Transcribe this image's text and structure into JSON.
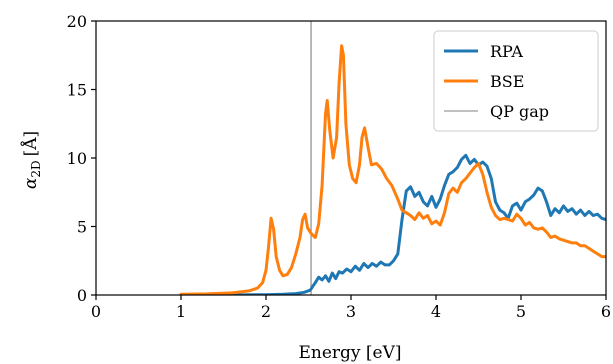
{
  "chart_data": {
    "type": "line",
    "title": "",
    "xlabel": "Energy [eV]",
    "ylabel_main": "α",
    "ylabel_sub": "2D",
    "ylabel_unit": "[Å]",
    "xlim": [
      0,
      6
    ],
    "ylim": [
      0,
      20
    ],
    "xticks": [
      0,
      1,
      2,
      3,
      4,
      5,
      6
    ],
    "yticks": [
      0,
      5,
      10,
      15,
      20
    ],
    "grid": false,
    "legend_position": "top-right",
    "qp_gap": 2.53,
    "series": [
      {
        "name": "RPA",
        "color": "#1f77b4",
        "points": [
          [
            1.0,
            0.0
          ],
          [
            1.5,
            0.0
          ],
          [
            2.0,
            0.02
          ],
          [
            2.2,
            0.05
          ],
          [
            2.35,
            0.1
          ],
          [
            2.45,
            0.2
          ],
          [
            2.52,
            0.35
          ],
          [
            2.58,
            0.9
          ],
          [
            2.62,
            1.3
          ],
          [
            2.66,
            1.1
          ],
          [
            2.7,
            1.4
          ],
          [
            2.74,
            1.0
          ],
          [
            2.78,
            1.6
          ],
          [
            2.82,
            1.2
          ],
          [
            2.86,
            1.7
          ],
          [
            2.9,
            1.6
          ],
          [
            2.95,
            1.9
          ],
          [
            3.0,
            1.7
          ],
          [
            3.05,
            2.1
          ],
          [
            3.1,
            1.8
          ],
          [
            3.15,
            2.3
          ],
          [
            3.2,
            2.0
          ],
          [
            3.25,
            2.3
          ],
          [
            3.3,
            2.1
          ],
          [
            3.35,
            2.4
          ],
          [
            3.4,
            2.2
          ],
          [
            3.45,
            2.2
          ],
          [
            3.5,
            2.5
          ],
          [
            3.55,
            3.0
          ],
          [
            3.6,
            5.5
          ],
          [
            3.65,
            7.6
          ],
          [
            3.7,
            7.9
          ],
          [
            3.75,
            7.2
          ],
          [
            3.8,
            7.5
          ],
          [
            3.85,
            6.8
          ],
          [
            3.9,
            6.5
          ],
          [
            3.95,
            7.2
          ],
          [
            4.0,
            6.4
          ],
          [
            4.05,
            7.0
          ],
          [
            4.1,
            8.0
          ],
          [
            4.15,
            8.8
          ],
          [
            4.2,
            9.0
          ],
          [
            4.25,
            9.3
          ],
          [
            4.3,
            9.9
          ],
          [
            4.35,
            10.2
          ],
          [
            4.4,
            9.6
          ],
          [
            4.45,
            9.9
          ],
          [
            4.5,
            9.5
          ],
          [
            4.55,
            9.7
          ],
          [
            4.6,
            9.4
          ],
          [
            4.65,
            8.5
          ],
          [
            4.7,
            6.8
          ],
          [
            4.75,
            6.2
          ],
          [
            4.8,
            6.0
          ],
          [
            4.85,
            5.6
          ],
          [
            4.9,
            6.5
          ],
          [
            4.95,
            6.7
          ],
          [
            5.0,
            6.2
          ],
          [
            5.05,
            6.8
          ],
          [
            5.1,
            7.0
          ],
          [
            5.15,
            7.3
          ],
          [
            5.2,
            7.8
          ],
          [
            5.25,
            7.6
          ],
          [
            5.3,
            6.8
          ],
          [
            5.35,
            5.8
          ],
          [
            5.4,
            6.3
          ],
          [
            5.45,
            6.0
          ],
          [
            5.5,
            6.5
          ],
          [
            5.55,
            6.1
          ],
          [
            5.6,
            6.3
          ],
          [
            5.65,
            5.9
          ],
          [
            5.7,
            6.2
          ],
          [
            5.75,
            5.8
          ],
          [
            5.8,
            6.1
          ],
          [
            5.85,
            5.8
          ],
          [
            5.9,
            5.9
          ],
          [
            5.95,
            5.6
          ],
          [
            6.0,
            5.5
          ]
        ]
      },
      {
        "name": "BSE",
        "color": "#ff7f0e",
        "points": [
          [
            1.0,
            0.05
          ],
          [
            1.3,
            0.08
          ],
          [
            1.6,
            0.15
          ],
          [
            1.8,
            0.3
          ],
          [
            1.9,
            0.5
          ],
          [
            1.96,
            0.9
          ],
          [
            2.0,
            1.8
          ],
          [
            2.03,
            3.5
          ],
          [
            2.06,
            5.6
          ],
          [
            2.09,
            4.8
          ],
          [
            2.12,
            2.8
          ],
          [
            2.16,
            1.8
          ],
          [
            2.2,
            1.4
          ],
          [
            2.25,
            1.5
          ],
          [
            2.3,
            2.0
          ],
          [
            2.35,
            3.0
          ],
          [
            2.4,
            4.2
          ],
          [
            2.43,
            5.5
          ],
          [
            2.46,
            5.9
          ],
          [
            2.49,
            4.9
          ],
          [
            2.53,
            4.5
          ],
          [
            2.58,
            4.2
          ],
          [
            2.62,
            5.2
          ],
          [
            2.66,
            8.0
          ],
          [
            2.7,
            13.2
          ],
          [
            2.72,
            14.2
          ],
          [
            2.75,
            12.0
          ],
          [
            2.79,
            10.0
          ],
          [
            2.83,
            11.5
          ],
          [
            2.86,
            15.5
          ],
          [
            2.89,
            18.2
          ],
          [
            2.91,
            17.5
          ],
          [
            2.94,
            12.5
          ],
          [
            2.98,
            9.5
          ],
          [
            3.02,
            8.5
          ],
          [
            3.06,
            8.2
          ],
          [
            3.1,
            9.5
          ],
          [
            3.13,
            11.5
          ],
          [
            3.16,
            12.2
          ],
          [
            3.2,
            10.8
          ],
          [
            3.24,
            9.5
          ],
          [
            3.3,
            9.6
          ],
          [
            3.36,
            9.2
          ],
          [
            3.42,
            8.5
          ],
          [
            3.48,
            8.0
          ],
          [
            3.55,
            7.0
          ],
          [
            3.6,
            6.2
          ],
          [
            3.65,
            6.0
          ],
          [
            3.7,
            5.8
          ],
          [
            3.75,
            5.5
          ],
          [
            3.8,
            6.0
          ],
          [
            3.85,
            5.6
          ],
          [
            3.9,
            5.8
          ],
          [
            3.95,
            5.2
          ],
          [
            4.0,
            5.4
          ],
          [
            4.05,
            5.1
          ],
          [
            4.1,
            6.0
          ],
          [
            4.15,
            7.4
          ],
          [
            4.2,
            7.8
          ],
          [
            4.25,
            7.5
          ],
          [
            4.3,
            8.2
          ],
          [
            4.35,
            8.5
          ],
          [
            4.4,
            8.9
          ],
          [
            4.45,
            9.3
          ],
          [
            4.5,
            9.6
          ],
          [
            4.55,
            8.8
          ],
          [
            4.6,
            7.5
          ],
          [
            4.65,
            6.4
          ],
          [
            4.7,
            5.8
          ],
          [
            4.75,
            5.5
          ],
          [
            4.8,
            5.6
          ],
          [
            4.85,
            5.5
          ],
          [
            4.9,
            5.4
          ],
          [
            4.95,
            5.9
          ],
          [
            5.0,
            5.6
          ],
          [
            5.05,
            5.1
          ],
          [
            5.1,
            5.3
          ],
          [
            5.15,
            4.9
          ],
          [
            5.2,
            4.8
          ],
          [
            5.25,
            4.9
          ],
          [
            5.3,
            4.6
          ],
          [
            5.35,
            4.2
          ],
          [
            5.4,
            4.3
          ],
          [
            5.45,
            4.1
          ],
          [
            5.5,
            4.0
          ],
          [
            5.55,
            3.9
          ],
          [
            5.6,
            3.8
          ],
          [
            5.65,
            3.8
          ],
          [
            5.7,
            3.6
          ],
          [
            5.75,
            3.6
          ],
          [
            5.8,
            3.4
          ],
          [
            5.85,
            3.2
          ],
          [
            5.9,
            3.0
          ],
          [
            5.95,
            2.8
          ],
          [
            6.0,
            2.8
          ]
        ]
      },
      {
        "name": "QP gap",
        "color": "#808080"
      }
    ]
  }
}
